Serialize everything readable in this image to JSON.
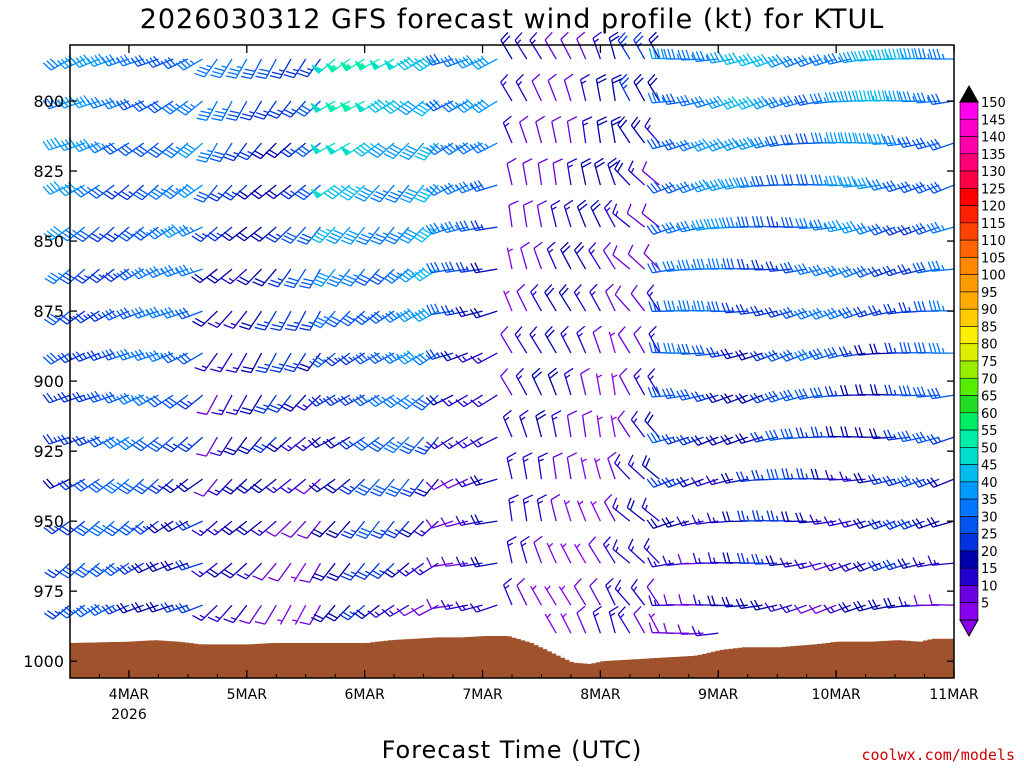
{
  "chart_data": {
    "type": "wind-barb-time-height",
    "title": "2026030312 GFS forecast wind profile (kt) for KTUL",
    "xlabel": "Forecast Time (UTC)",
    "ylabel": "",
    "credit": "coolwx.com/models",
    "x_ticks": [
      {
        "label": "4MAR",
        "sublabel": "2026",
        "day": 1
      },
      {
        "label": "5MAR",
        "day": 2
      },
      {
        "label": "6MAR",
        "day": 3
      },
      {
        "label": "7MAR",
        "day": 4
      },
      {
        "label": "8MAR",
        "day": 5
      },
      {
        "label": "9MAR",
        "day": 6
      },
      {
        "label": "10MAR",
        "day": 7
      },
      {
        "label": "11MAR",
        "day": 8
      }
    ],
    "xlim_days": [
      0.5,
      8.0
    ],
    "y_ticks": [
      800,
      825,
      850,
      875,
      900,
      925,
      950,
      975,
      1000
    ],
    "ylim_hpa": [
      780,
      1006
    ],
    "levels_hpa": [
      785,
      800,
      815,
      830,
      845,
      860,
      875,
      890,
      905,
      920,
      935,
      950,
      965,
      980,
      990
    ],
    "time_step_hours": 3,
    "colorbar": {
      "min": 5,
      "max": 150,
      "step": 5,
      "labels": [
        150,
        145,
        140,
        135,
        130,
        125,
        120,
        115,
        110,
        105,
        100,
        95,
        90,
        85,
        80,
        75,
        70,
        65,
        60,
        55,
        50,
        45,
        40,
        35,
        30,
        25,
        20,
        15,
        10,
        5
      ],
      "colors": {
        "5": "#8800ee",
        "10": "#6a00dd",
        "15": "#2200cc",
        "20": "#0000aa",
        "25": "#0033dd",
        "30": "#0055ee",
        "35": "#0077ff",
        "40": "#0099ff",
        "45": "#00bbee",
        "50": "#00ddcc",
        "55": "#00eeaa",
        "60": "#00ee66",
        "65": "#22dd22",
        "70": "#55ee00",
        "75": "#99ee00",
        "80": "#ddee00",
        "85": "#ffee00",
        "90": "#ffcc00",
        "95": "#ffaa00",
        "100": "#ff9900",
        "105": "#ff8800",
        "110": "#ff6600",
        "115": "#ff4400",
        "120": "#ff2200",
        "125": "#ff0000",
        "130": "#ff0044",
        "135": "#ff0077",
        "140": "#ff00aa",
        "145": "#ff00cc",
        "150": "#ff00ee"
      }
    },
    "surface_pressure_hpa": [
      [
        0.5,
        993.5
      ],
      [
        1.0,
        993.0
      ],
      [
        1.2,
        992.5
      ],
      [
        1.4,
        993.0
      ],
      [
        1.6,
        994.0
      ],
      [
        1.8,
        994.0
      ],
      [
        2.0,
        994.0
      ],
      [
        2.2,
        993.5
      ],
      [
        2.5,
        993.5
      ],
      [
        2.8,
        993.5
      ],
      [
        3.0,
        993.5
      ],
      [
        3.2,
        992.5
      ],
      [
        3.4,
        992.0
      ],
      [
        3.6,
        991.5
      ],
      [
        3.8,
        991.5
      ],
      [
        4.0,
        991.0
      ],
      [
        4.2,
        991.0
      ],
      [
        4.4,
        993.5
      ],
      [
        4.6,
        997.5
      ],
      [
        4.75,
        1000.5
      ],
      [
        4.9,
        1001.0
      ],
      [
        5.0,
        1000.0
      ],
      [
        5.2,
        999.5
      ],
      [
        5.4,
        999.0
      ],
      [
        5.6,
        998.5
      ],
      [
        5.8,
        998.0
      ],
      [
        6.0,
        996.0
      ],
      [
        6.2,
        995.0
      ],
      [
        6.5,
        995.0
      ],
      [
        6.8,
        994.0
      ],
      [
        7.0,
        993.0
      ],
      [
        7.3,
        993.0
      ],
      [
        7.5,
        992.5
      ],
      [
        7.7,
        993.0
      ],
      [
        7.8,
        992.0
      ],
      [
        8.0,
        992.0
      ]
    ],
    "ground_color": "#a0522d",
    "regimes": [
      {
        "t_from": 0.5,
        "t_to": 1.7,
        "dir_deg": 240,
        "speed_top": 35,
        "speed_bottom": 25
      },
      {
        "t_from": 1.7,
        "t_to": 2.7,
        "dir_deg": 220,
        "speed_top": 30,
        "speed_bottom": 10
      },
      {
        "t_from": 2.7,
        "t_to": 3.7,
        "dir_deg": 230,
        "speed_top": 50,
        "speed_bottom": 15
      },
      {
        "t_from": 3.7,
        "t_to": 4.2,
        "dir_deg": 250,
        "speed_top": 35,
        "speed_bottom": 10
      },
      {
        "t_from": 4.2,
        "t_to": 5.2,
        "dir_deg": 340,
        "speed_top": 15,
        "speed_bottom": 10
      },
      {
        "t_from": 5.2,
        "t_to": 5.6,
        "dir_deg": 320,
        "speed_top": 20,
        "speed_bottom": 10
      },
      {
        "t_from": 5.6,
        "t_to": 8.0,
        "dir_deg": 260,
        "speed_top": 40,
        "speed_bottom": 15
      }
    ]
  }
}
